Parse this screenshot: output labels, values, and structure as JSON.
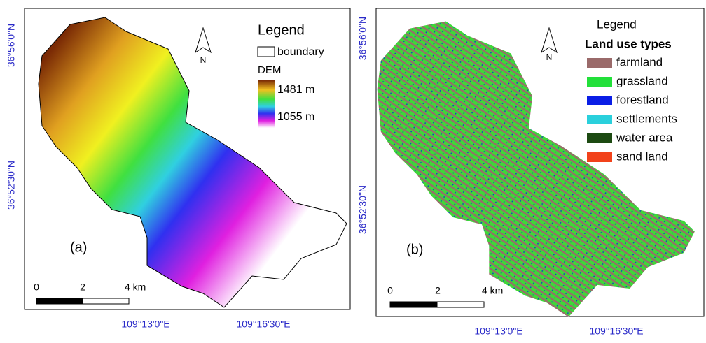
{
  "panels": [
    {
      "label": "(a)",
      "legend": {
        "title": "Legend",
        "boundary": "boundary",
        "dem_title": "DEM",
        "dem_high": "1481 m",
        "dem_low": "1055 m"
      },
      "north": "N",
      "scale": [
        "0",
        "2",
        "4 km"
      ],
      "lon_labels": [
        "109°13'0\"E",
        "109°16'30\"E"
      ],
      "lat_labels": [
        "36°56'0\"N",
        "36°52'30\"N"
      ]
    },
    {
      "label": "(b)",
      "legend": {
        "title": "Legend",
        "subtitle": "Land use types",
        "items": [
          {
            "name": "farmland",
            "color": "#9a6a6a"
          },
          {
            "name": "grassland",
            "color": "#22e03a"
          },
          {
            "name": "forestland",
            "color": "#0a1ee6"
          },
          {
            "name": "settlements",
            "color": "#2ad0dc"
          },
          {
            "name": "water area",
            "color": "#1d4a12"
          },
          {
            "name": "sand land",
            "color": "#f2421a"
          }
        ]
      },
      "north": "N",
      "scale": [
        "0",
        "2",
        "4 km"
      ],
      "lon_labels": [
        "109°13'0\"E",
        "109°16'30\"E"
      ],
      "lat_labels": [
        "36°56'0\"N",
        "36°52'30\"N"
      ]
    }
  ]
}
